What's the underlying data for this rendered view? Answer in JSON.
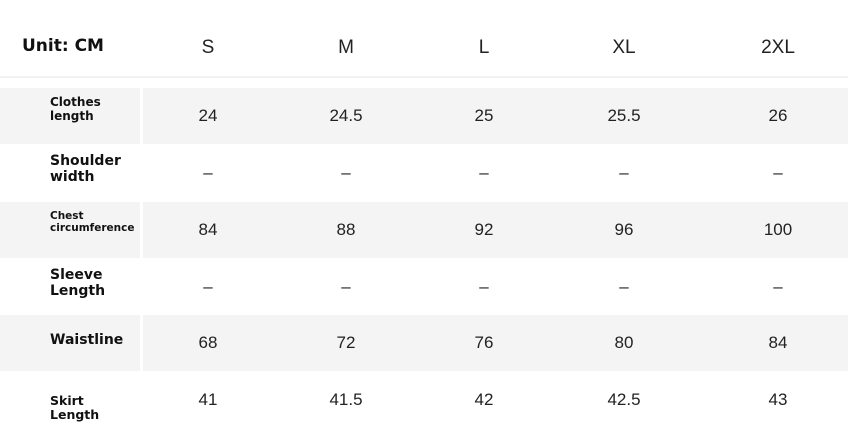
{
  "unit_label": "Unit: CM",
  "sizes": [
    "S",
    "M",
    "L",
    "XL",
    "2XL"
  ],
  "rows": [
    {
      "label": "Clothes length",
      "values": [
        "24",
        "24.5",
        "25",
        "25.5",
        "26"
      ]
    },
    {
      "label": "Shoulder width",
      "values": [
        "–",
        "–",
        "–",
        "–",
        "–"
      ]
    },
    {
      "label": "Chest circumference",
      "values": [
        "84",
        "88",
        "92",
        "96",
        "100"
      ]
    },
    {
      "label": "Sleeve Length",
      "values": [
        "–",
        "–",
        "–",
        "–",
        "–"
      ]
    },
    {
      "label": "Waistline",
      "values": [
        "68",
        "72",
        "76",
        "80",
        "84"
      ]
    },
    {
      "label": "Skirt Length",
      "values": [
        "41",
        "41.5",
        "42",
        "42.5",
        "43"
      ]
    }
  ]
}
